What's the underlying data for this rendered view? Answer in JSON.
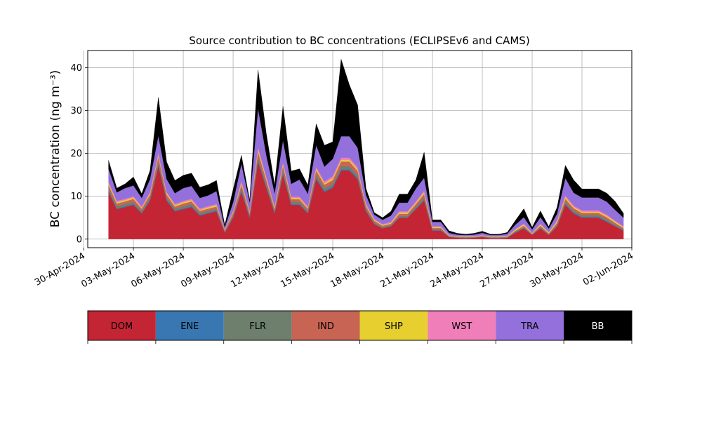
{
  "chart_data": {
    "type": "area",
    "stacked": true,
    "title": "Source contribution to BC concentrations (ECLIPSEv6 and CAMS)",
    "ylabel": "BC concentration (ng m⁻³)",
    "xlabel": "",
    "ylim": [
      -2,
      44
    ],
    "yticks": [
      0,
      10,
      20,
      30,
      40
    ],
    "xlim": [
      "2024-04-30T06:00",
      "2024-06-02T00:00"
    ],
    "xticks": [
      "30-Apr-2024",
      "03-May-2024",
      "06-May-2024",
      "09-May-2024",
      "12-May-2024",
      "15-May-2024",
      "18-May-2024",
      "21-May-2024",
      "24-May-2024",
      "27-May-2024",
      "30-May-2024",
      "02-Jun-2024"
    ],
    "grid": true,
    "legend_position": "below",
    "x": [
      "2024-05-01T12:00",
      "2024-05-02T00:00",
      "2024-05-02T12:00",
      "2024-05-03T00:00",
      "2024-05-03T12:00",
      "2024-05-04T00:00",
      "2024-05-04T12:00",
      "2024-05-05T00:00",
      "2024-05-05T12:00",
      "2024-05-06T00:00",
      "2024-05-06T12:00",
      "2024-05-07T00:00",
      "2024-05-07T12:00",
      "2024-05-08T00:00",
      "2024-05-08T12:00",
      "2024-05-09T00:00",
      "2024-05-09T12:00",
      "2024-05-10T00:00",
      "2024-05-10T12:00",
      "2024-05-11T00:00",
      "2024-05-11T12:00",
      "2024-05-12T00:00",
      "2024-05-12T12:00",
      "2024-05-13T00:00",
      "2024-05-13T12:00",
      "2024-05-14T00:00",
      "2024-05-14T12:00",
      "2024-05-15T00:00",
      "2024-05-15T12:00",
      "2024-05-16T00:00",
      "2024-05-16T12:00",
      "2024-05-17T00:00",
      "2024-05-17T12:00",
      "2024-05-18T00:00",
      "2024-05-18T12:00",
      "2024-05-19T00:00",
      "2024-05-19T12:00",
      "2024-05-20T00:00",
      "2024-05-20T12:00",
      "2024-05-21T00:00",
      "2024-05-21T12:00",
      "2024-05-22T00:00",
      "2024-05-22T12:00",
      "2024-05-23T00:00",
      "2024-05-23T12:00",
      "2024-05-24T00:00",
      "2024-05-24T12:00",
      "2024-05-25T00:00",
      "2024-05-25T12:00",
      "2024-05-26T00:00",
      "2024-05-26T12:00",
      "2024-05-27T00:00",
      "2024-05-27T12:00",
      "2024-05-28T00:00",
      "2024-05-28T12:00",
      "2024-05-29T00:00",
      "2024-05-29T12:00",
      "2024-05-30T00:00",
      "2024-05-30T12:00",
      "2024-05-31T00:00",
      "2024-05-31T12:00",
      "2024-06-01T00:00",
      "2024-06-01T12:00"
    ],
    "series": [
      {
        "name": "DOM",
        "color": "#c42535",
        "values": [
          11,
          7,
          7.5,
          8,
          6,
          9,
          17,
          9,
          6.5,
          7,
          7.5,
          5.5,
          6,
          6.5,
          1.5,
          5,
          11,
          5,
          18,
          12,
          6,
          15,
          8,
          8,
          6,
          14,
          11,
          12,
          16,
          16,
          14,
          6.5,
          3.5,
          2.5,
          3,
          5,
          5,
          7,
          9,
          2,
          2,
          0.5,
          0.3,
          0.2,
          0.3,
          0.5,
          0.2,
          0.2,
          0.3,
          1.5,
          2.5,
          1,
          2.5,
          1,
          3,
          8,
          6,
          5,
          5,
          5,
          4,
          3,
          2
        ]
      },
      {
        "name": "ENE",
        "color": "#3877b2",
        "values": [
          0.3,
          0.2,
          0.2,
          0.2,
          0.2,
          0.2,
          0.3,
          0.2,
          0.2,
          0.2,
          0.2,
          0.2,
          0.2,
          0.2,
          0.1,
          0.2,
          0.3,
          0.2,
          0.3,
          0.3,
          0.2,
          0.3,
          0.2,
          0.2,
          0.2,
          0.3,
          0.3,
          0.3,
          0.3,
          0.3,
          0.3,
          0.2,
          0.1,
          0.1,
          0.1,
          0.1,
          0.1,
          0.2,
          0.2,
          0.1,
          0.1,
          0.05,
          0.05,
          0.05,
          0.05,
          0.05,
          0.05,
          0.05,
          0.05,
          0.1,
          0.1,
          0.05,
          0.1,
          0.05,
          0.1,
          0.2,
          0.2,
          0.2,
          0.2,
          0.2,
          0.2,
          0.1,
          0.1
        ]
      },
      {
        "name": "FLR",
        "color": "#6e7f6e",
        "values": [
          0.6,
          0.5,
          0.5,
          0.5,
          0.4,
          0.5,
          0.7,
          0.5,
          0.4,
          0.5,
          0.5,
          0.4,
          0.4,
          0.4,
          0.2,
          0.4,
          0.6,
          0.4,
          0.8,
          0.6,
          0.4,
          0.7,
          0.5,
          0.5,
          0.4,
          0.7,
          0.6,
          0.6,
          0.7,
          0.7,
          0.6,
          0.4,
          0.3,
          0.2,
          0.2,
          0.3,
          0.3,
          0.4,
          0.5,
          0.2,
          0.2,
          0.1,
          0.1,
          0.1,
          0.1,
          0.1,
          0.1,
          0.1,
          0.1,
          0.2,
          0.2,
          0.1,
          0.2,
          0.1,
          0.3,
          0.5,
          0.4,
          0.4,
          0.4,
          0.4,
          0.4,
          0.3,
          0.2
        ]
      },
      {
        "name": "IND",
        "color": "#c86454",
        "values": [
          0.8,
          0.6,
          0.6,
          0.7,
          0.5,
          0.7,
          1.2,
          0.7,
          0.5,
          0.6,
          0.6,
          0.5,
          0.5,
          0.5,
          0.3,
          0.5,
          0.8,
          0.5,
          1.3,
          0.9,
          0.5,
          1.1,
          0.6,
          0.6,
          0.5,
          1,
          0.8,
          0.9,
          1.1,
          1.1,
          1,
          0.6,
          0.4,
          0.3,
          0.3,
          0.5,
          0.5,
          0.6,
          0.8,
          0.3,
          0.3,
          0.1,
          0.1,
          0.1,
          0.1,
          0.1,
          0.1,
          0.1,
          0.1,
          0.2,
          0.3,
          0.1,
          0.3,
          0.2,
          0.4,
          0.7,
          0.6,
          0.5,
          0.5,
          0.5,
          0.5,
          0.4,
          0.3
        ]
      },
      {
        "name": "SHP",
        "color": "#e6cf2e",
        "values": [
          0.3,
          0.3,
          0.3,
          0.3,
          0.2,
          0.3,
          0.4,
          0.3,
          0.3,
          0.3,
          0.3,
          0.2,
          0.3,
          0.3,
          0.1,
          0.2,
          0.4,
          0.2,
          0.5,
          0.4,
          0.3,
          0.4,
          0.3,
          0.3,
          0.2,
          0.4,
          0.3,
          0.4,
          0.4,
          0.4,
          0.4,
          0.3,
          0.2,
          0.2,
          0.2,
          0.3,
          0.3,
          0.3,
          0.4,
          0.2,
          0.2,
          0.1,
          0.1,
          0.1,
          0.1,
          0.1,
          0.1,
          0.1,
          0.1,
          0.2,
          0.3,
          0.1,
          0.3,
          0.2,
          0.3,
          0.4,
          0.3,
          0.3,
          0.3,
          0.3,
          0.3,
          0.3,
          0.2
        ]
      },
      {
        "name": "WST",
        "color": "#f07eb9",
        "values": [
          0.4,
          0.3,
          0.3,
          0.3,
          0.3,
          0.3,
          0.5,
          0.3,
          0.3,
          0.3,
          0.3,
          0.3,
          0.3,
          0.3,
          0.1,
          0.3,
          0.5,
          0.3,
          0.6,
          0.4,
          0.3,
          0.5,
          0.3,
          0.3,
          0.3,
          0.5,
          0.4,
          0.5,
          0.5,
          0.5,
          0.5,
          0.3,
          0.2,
          0.2,
          0.2,
          0.3,
          0.3,
          0.3,
          0.4,
          0.2,
          0.2,
          0.1,
          0.1,
          0.1,
          0.1,
          0.1,
          0.1,
          0.1,
          0.1,
          0.2,
          0.2,
          0.1,
          0.2,
          0.1,
          0.3,
          0.4,
          0.3,
          0.3,
          0.3,
          0.3,
          0.3,
          0.2,
          0.2
        ]
      },
      {
        "name": "TRA",
        "color": "#9370db",
        "values": [
          3,
          2,
          2.5,
          2.5,
          2,
          3,
          4,
          3,
          2.5,
          3,
          3,
          2.5,
          2.5,
          3,
          0.5,
          2,
          4,
          2,
          9,
          5,
          3,
          5,
          3,
          4,
          3,
          5,
          3.5,
          4,
          5,
          5,
          4.5,
          2,
          1,
          1,
          1.5,
          2,
          2,
          3,
          3,
          1,
          1,
          0.5,
          0.3,
          0.3,
          0.3,
          0.5,
          0.3,
          0.3,
          0.5,
          1,
          1.5,
          0.8,
          1.5,
          0.8,
          1.5,
          4,
          3,
          3,
          3,
          3,
          3,
          2.5,
          2
        ]
      },
      {
        "name": "BB",
        "color": "#000000",
        "values": [
          2,
          1,
          1,
          2,
          1,
          2,
          9,
          4,
          3,
          3,
          3,
          2.5,
          2.5,
          2.5,
          0.5,
          3,
          2,
          0.5,
          9,
          5,
          2,
          8,
          3,
          2.5,
          2,
          5,
          5,
          4,
          18,
          12,
          10,
          1.5,
          0.5,
          0.5,
          1,
          2,
          2,
          2,
          6,
          0.5,
          0.5,
          0.5,
          0.3,
          0.2,
          0.3,
          0.4,
          0.2,
          0.2,
          0.3,
          1,
          2,
          0.5,
          1.5,
          0.5,
          1.5,
          3,
          3,
          2,
          2,
          2,
          2,
          2,
          1
        ]
      }
    ]
  }
}
